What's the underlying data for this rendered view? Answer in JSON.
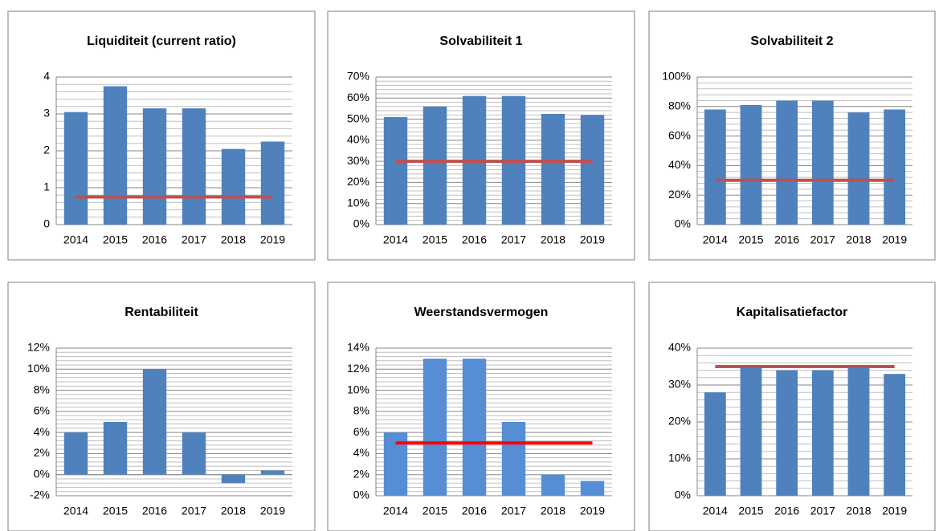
{
  "chart_data": [
    {
      "type": "bar",
      "title": "Liquiditeit (current ratio)",
      "categories": [
        "2014",
        "2015",
        "2016",
        "2017",
        "2018",
        "2019"
      ],
      "values": [
        3.05,
        3.75,
        3.15,
        3.15,
        2.05,
        2.25
      ],
      "color": "#4f81bd",
      "reference_line": {
        "value": 0.75,
        "color": "#c0504d"
      },
      "ylim": [
        0,
        4
      ],
      "yticks": [
        0,
        1,
        2,
        3,
        4
      ],
      "grid": true
    },
    {
      "type": "bar",
      "title": "Solvabiliteit 1",
      "categories": [
        "2014",
        "2015",
        "2016",
        "2017",
        "2018",
        "2019"
      ],
      "values": [
        51,
        56,
        61,
        61,
        52.5,
        52
      ],
      "color": "#4f81bd",
      "reference_line": {
        "value": 30,
        "color": "#c0504d"
      },
      "ylim": [
        0,
        70
      ],
      "yticks": [
        {
          "value": 0,
          "label": "0%"
        },
        {
          "value": 10,
          "label": "10%"
        },
        {
          "value": 20,
          "label": "20%"
        },
        {
          "value": 30,
          "label": "30%"
        },
        {
          "value": 40,
          "label": "40%"
        },
        {
          "value": 50,
          "label": "50%"
        },
        {
          "value": 60,
          "label": "60%"
        },
        {
          "value": 70,
          "label": "70%"
        }
      ],
      "grid": true
    },
    {
      "type": "bar",
      "title": "Solvabiliteit 2",
      "categories": [
        "2014",
        "2015",
        "2016",
        "2017",
        "2018",
        "2019"
      ],
      "values": [
        78,
        81,
        84,
        84,
        76,
        78
      ],
      "color": "#4f81bd",
      "reference_line": {
        "value": 30,
        "color": "#c0504d"
      },
      "ylim": [
        0,
        100
      ],
      "yticks": [
        {
          "value": 0,
          "label": "0%"
        },
        {
          "value": 20,
          "label": "20%"
        },
        {
          "value": 40,
          "label": "40%"
        },
        {
          "value": 60,
          "label": "60%"
        },
        {
          "value": 80,
          "label": "80%"
        },
        {
          "value": 100,
          "label": "100%"
        }
      ],
      "grid": true
    },
    {
      "type": "bar",
      "title": "Rentabiliteit",
      "categories": [
        "2014",
        "2015",
        "2016",
        "2017",
        "2018",
        "2019"
      ],
      "values": [
        4,
        5,
        10,
        4,
        -0.8,
        0.4
      ],
      "color": "#4f81bd",
      "ylim": [
        -2,
        12
      ],
      "yticks": [
        {
          "value": -2,
          "label": "-2%"
        },
        {
          "value": 0,
          "label": "0%"
        },
        {
          "value": 2,
          "label": "2%"
        },
        {
          "value": 4,
          "label": "4%"
        },
        {
          "value": 6,
          "label": "6%"
        },
        {
          "value": 8,
          "label": "8%"
        },
        {
          "value": 10,
          "label": "10%"
        },
        {
          "value": 12,
          "label": "12%"
        }
      ],
      "grid": true
    },
    {
      "type": "bar",
      "title": "Weerstandsvermogen",
      "categories": [
        "2014",
        "2015",
        "2016",
        "2017",
        "2018",
        "2019"
      ],
      "values": [
        6,
        13,
        13,
        7,
        2,
        1.4
      ],
      "color": "#558ed5",
      "reference_line": {
        "value": 5,
        "color": "#ff0000"
      },
      "ylim": [
        0,
        14
      ],
      "yticks": [
        {
          "value": 0,
          "label": "0%"
        },
        {
          "value": 2,
          "label": "2%"
        },
        {
          "value": 4,
          "label": "4%"
        },
        {
          "value": 6,
          "label": "6%"
        },
        {
          "value": 8,
          "label": "8%"
        },
        {
          "value": 10,
          "label": "10%"
        },
        {
          "value": 12,
          "label": "12%"
        },
        {
          "value": 14,
          "label": "14%"
        }
      ],
      "grid": true
    },
    {
      "type": "bar",
      "title": "Kapitalisatiefactor",
      "categories": [
        "2014",
        "2015",
        "2016",
        "2017",
        "2018",
        "2019"
      ],
      "values": [
        28,
        35,
        34,
        34,
        35,
        33
      ],
      "color": "#4f81bd",
      "reference_line": {
        "value": 35,
        "color": "#c0504d"
      },
      "ylim": [
        0,
        40
      ],
      "yticks": [
        {
          "value": 0,
          "label": "0%"
        },
        {
          "value": 10,
          "label": "10%"
        },
        {
          "value": 20,
          "label": "20%"
        },
        {
          "value": 30,
          "label": "30%"
        },
        {
          "value": 40,
          "label": "40%"
        }
      ],
      "grid": true
    }
  ]
}
